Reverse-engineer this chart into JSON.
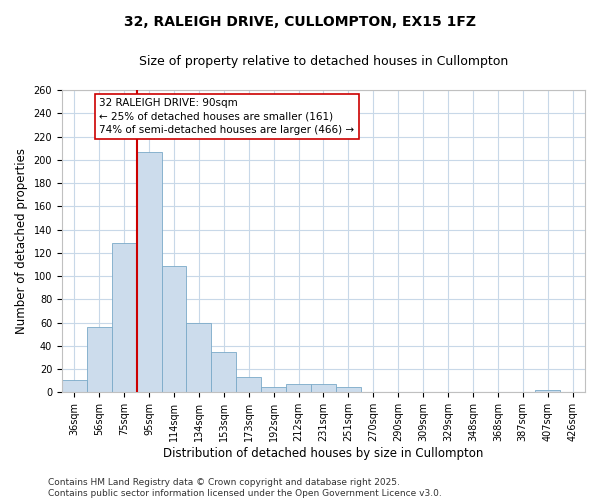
{
  "title_line1": "32, RALEIGH DRIVE, CULLOMPTON, EX15 1FZ",
  "title_line2": "Size of property relative to detached houses in Cullompton",
  "xlabel": "Distribution of detached houses by size in Cullompton",
  "ylabel": "Number of detached properties",
  "categories": [
    "36sqm",
    "56sqm",
    "75sqm",
    "95sqm",
    "114sqm",
    "134sqm",
    "153sqm",
    "173sqm",
    "192sqm",
    "212sqm",
    "231sqm",
    "251sqm",
    "270sqm",
    "290sqm",
    "309sqm",
    "329sqm",
    "348sqm",
    "368sqm",
    "387sqm",
    "407sqm",
    "426sqm"
  ],
  "values": [
    11,
    56,
    128,
    207,
    109,
    60,
    35,
    13,
    5,
    7,
    7,
    5,
    0,
    0,
    0,
    0,
    0,
    0,
    0,
    2,
    0
  ],
  "bar_color": "#ccdcec",
  "bar_edge_color": "#7aaac8",
  "vline_color": "#cc0000",
  "annotation_text": "32 RALEIGH DRIVE: 90sqm\n← 25% of detached houses are smaller (161)\n74% of semi-detached houses are larger (466) →",
  "annotation_box_color": "#ffffff",
  "annotation_box_edge": "#cc0000",
  "ylim": [
    0,
    260
  ],
  "yticks": [
    0,
    20,
    40,
    60,
    80,
    100,
    120,
    140,
    160,
    180,
    200,
    220,
    240,
    260
  ],
  "plot_bg_color": "#ffffff",
  "fig_bg_color": "#ffffff",
  "grid_color": "#c8d8e8",
  "footnote_line1": "Contains HM Land Registry data © Crown copyright and database right 2025.",
  "footnote_line2": "Contains public sector information licensed under the Open Government Licence v3.0.",
  "title_fontsize": 10,
  "subtitle_fontsize": 9,
  "axis_label_fontsize": 8.5,
  "tick_fontsize": 7,
  "annotation_fontsize": 7.5,
  "footnote_fontsize": 6.5
}
